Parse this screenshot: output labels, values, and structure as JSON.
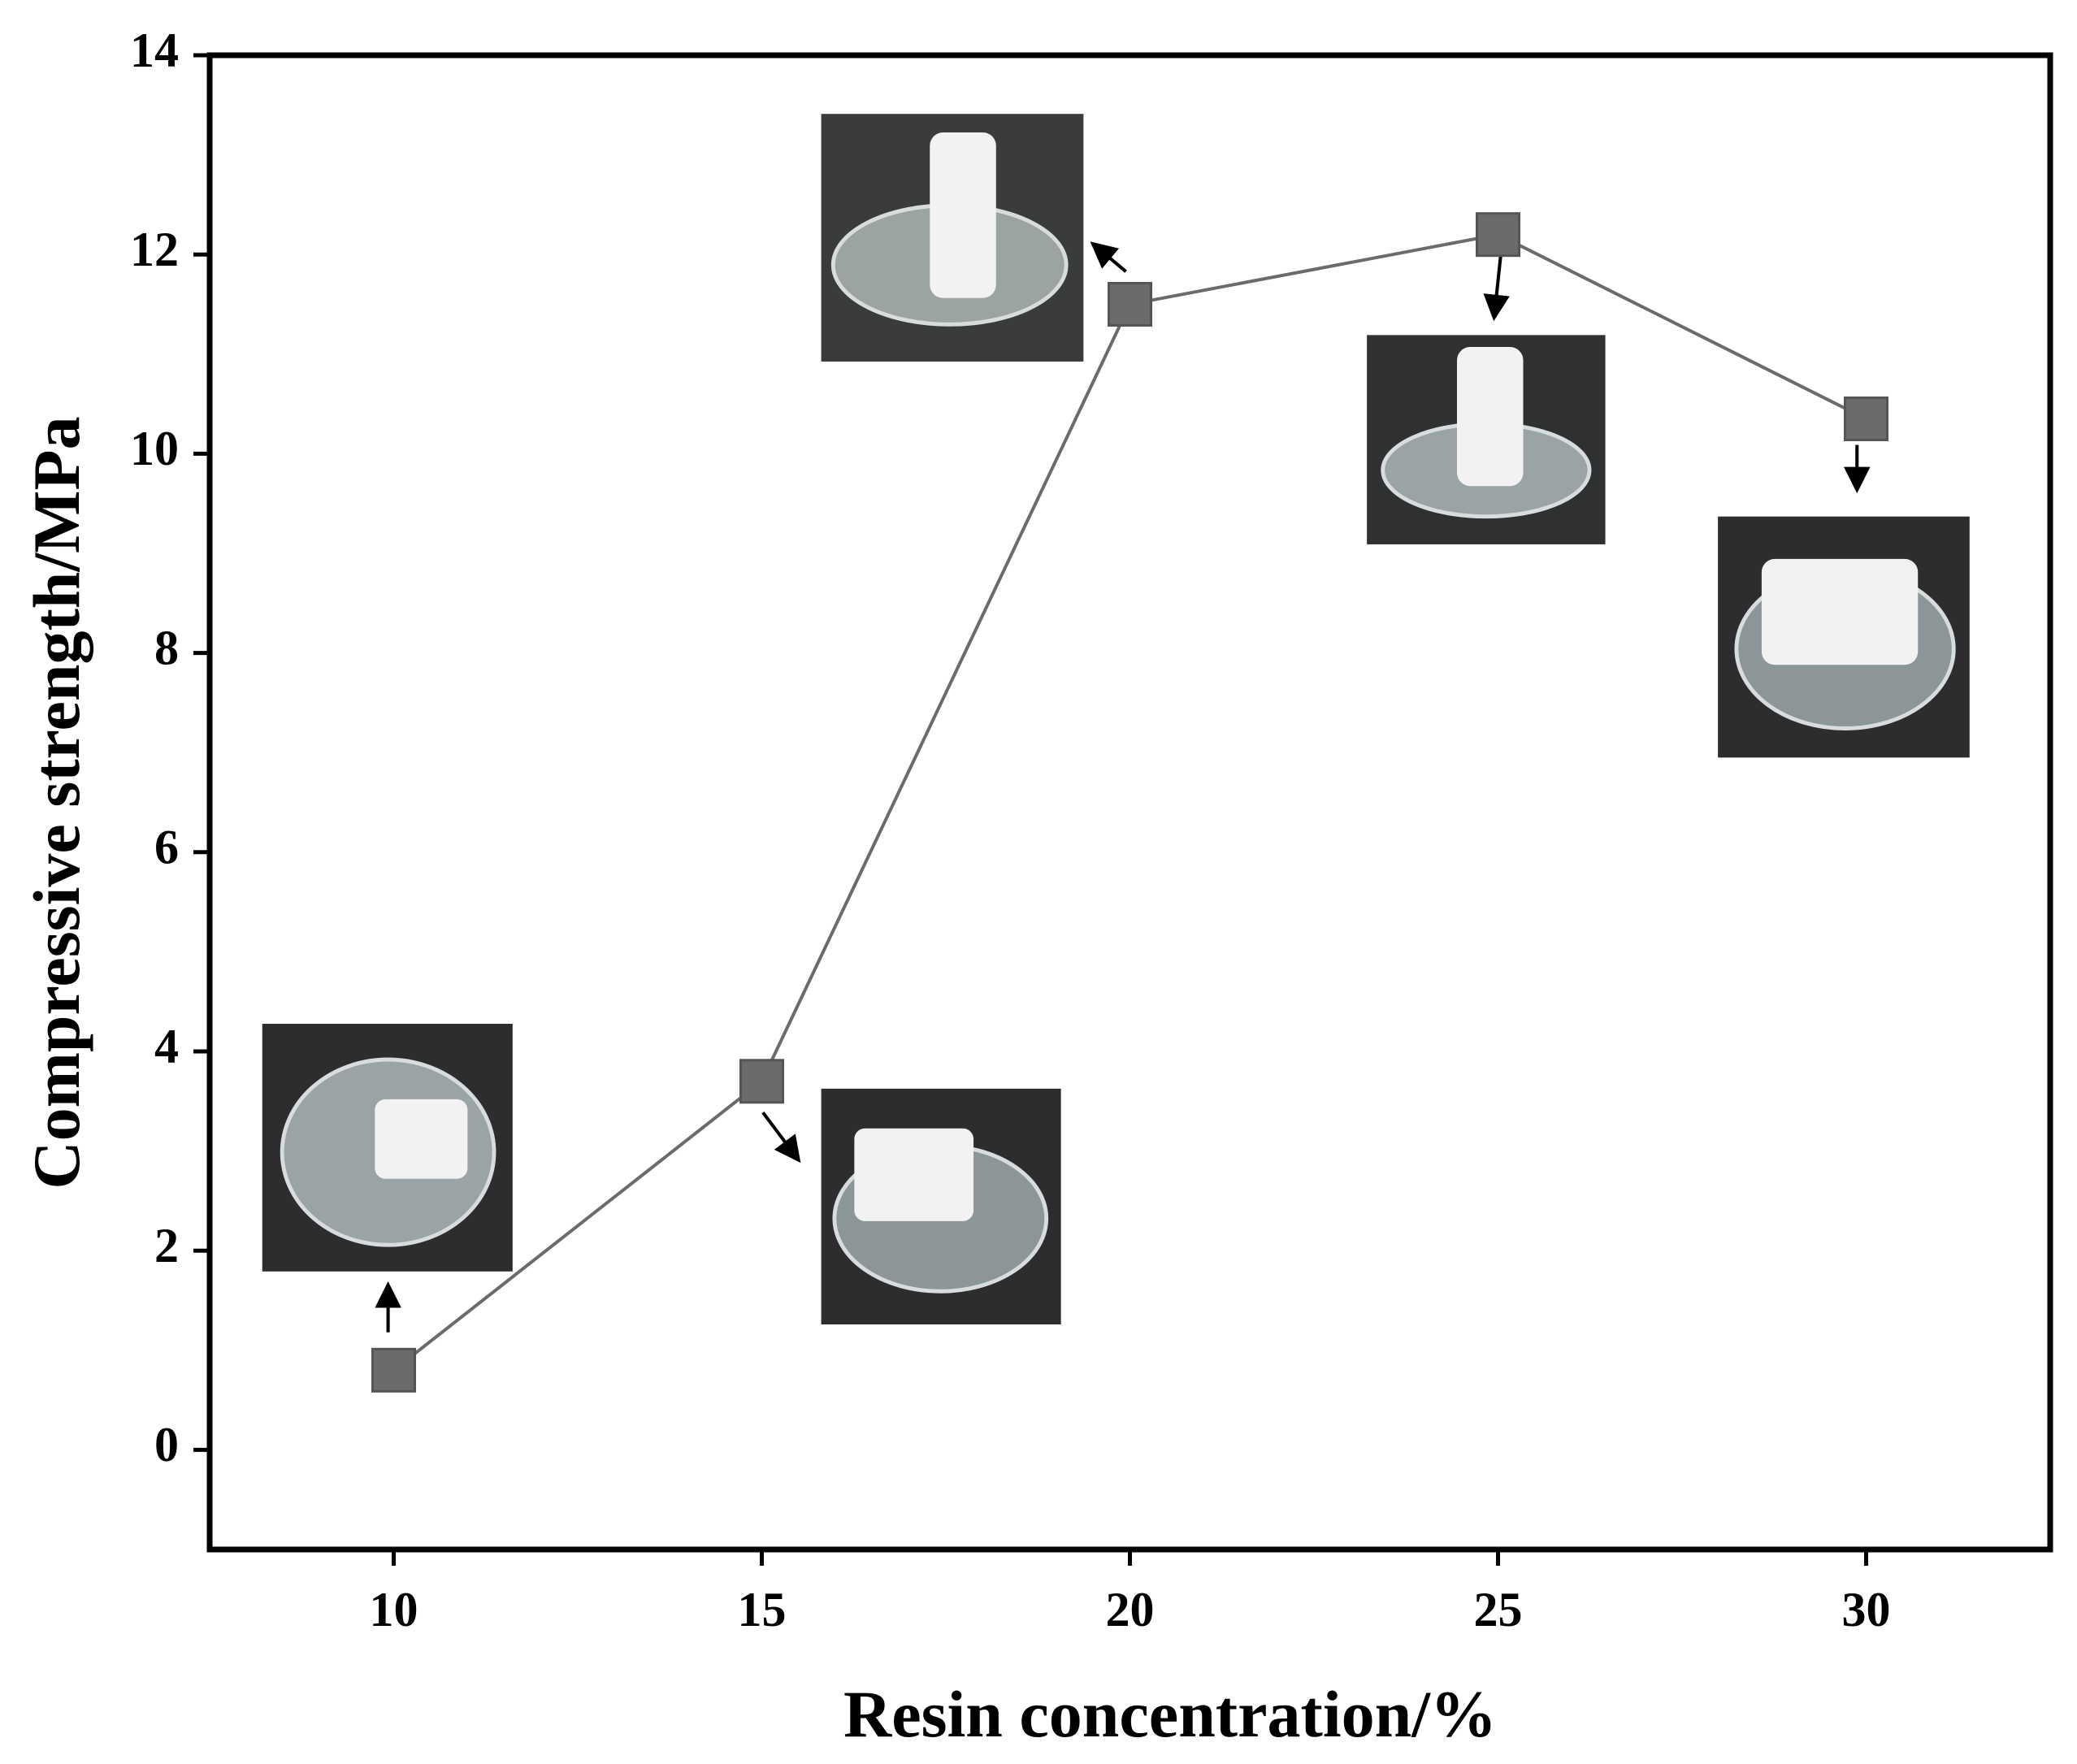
{
  "chart_data": {
    "type": "line",
    "x_label": "Resin concentration/%",
    "y_label": "Compressive strength/MPa",
    "x": [
      10,
      15,
      20,
      25,
      30
    ],
    "series": [
      {
        "color": "#6b6b6b",
        "values": [
          0.8,
          3.7,
          11.5,
          12.2,
          10.35
        ]
      }
    ],
    "xlim": [
      7.5,
      32.5
    ],
    "xticks": [
      10,
      15,
      20,
      25,
      30
    ],
    "ylim": [
      -1,
      14
    ],
    "yticks": [
      0,
      2,
      4,
      6,
      8,
      10,
      12,
      14
    ],
    "grid": false
  }
}
